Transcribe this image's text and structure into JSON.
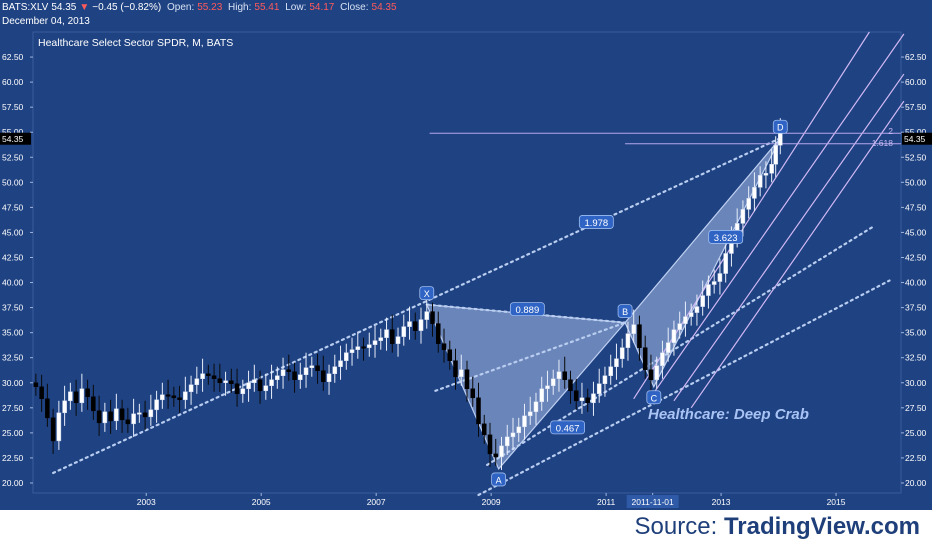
{
  "header": {
    "symbol": "BATS:XLV",
    "last": "54.35",
    "change_arrow": "▼",
    "change": "−0.45 (−0.82%)",
    "open_label": "Open:",
    "open": "55.23",
    "high_label": "High:",
    "high": "55.41",
    "low_label": "Low:",
    "low": "54.17",
    "close_label": "Close:",
    "close": "54.35",
    "date": "December 04, 2013"
  },
  "footer": {
    "source_prefix": "Source: ",
    "source_brand": "TradingView.com"
  },
  "colors": {
    "background": "#1f4282",
    "up_candle": "#ffffff",
    "down_candle": "#000000",
    "pattern_fill": "#a8bee8",
    "pattern_line": "#bfd0f2",
    "dotted_line": "#b8cdf0",
    "pitchfork": "#d0b8f4",
    "axis_text": "#ffffff"
  },
  "chart_data": {
    "type": "candlestick",
    "title": "Healthcare Select Sector SPDR, M, BATS",
    "annotation": "Healthcare: Deep Crab",
    "x_ticks": [
      "2003",
      "2005",
      "2007",
      "2009",
      "2011",
      "2011-11-01",
      "2013",
      "2015"
    ],
    "highlighted_x_tick": "2011-11-01",
    "y_ticks": [
      "20.00",
      "22.50",
      "25.00",
      "27.50",
      "30.00",
      "32.50",
      "35.00",
      "37.50",
      "40.00",
      "42.50",
      "45.00",
      "47.50",
      "50.00",
      "52.50",
      "55.00",
      "57.50",
      "60.00",
      "62.50"
    ],
    "ylim": [
      19.0,
      65.0
    ],
    "xlim": [
      2001.05,
      2016.15
    ],
    "last_price_label": "54.35",
    "last_price": 54.35,
    "closes": [
      {
        "year": 2001.1,
        "close": 29.6
      },
      {
        "year": 2001.2,
        "close": 28.4
      },
      {
        "year": 2001.3,
        "close": 26.5
      },
      {
        "year": 2001.4,
        "close": 24.2
      },
      {
        "year": 2001.5,
        "close": 27.0
      },
      {
        "year": 2001.6,
        "close": 28.2
      },
      {
        "year": 2001.7,
        "close": 29.1
      },
      {
        "year": 2001.8,
        "close": 28.0
      },
      {
        "year": 2001.9,
        "close": 29.4
      },
      {
        "year": 2002.0,
        "close": 28.6
      },
      {
        "year": 2002.1,
        "close": 27.2
      },
      {
        "year": 2002.2,
        "close": 26.0
      },
      {
        "year": 2002.3,
        "close": 27.1
      },
      {
        "year": 2002.4,
        "close": 26.2
      },
      {
        "year": 2002.5,
        "close": 27.4
      },
      {
        "year": 2002.6,
        "close": 26.3
      },
      {
        "year": 2002.7,
        "close": 25.9
      },
      {
        "year": 2002.8,
        "close": 26.9
      },
      {
        "year": 2002.9,
        "close": 27.0
      },
      {
        "year": 2003.0,
        "close": 26.6
      },
      {
        "year": 2003.1,
        "close": 27.3
      },
      {
        "year": 2003.2,
        "close": 28.3
      },
      {
        "year": 2003.3,
        "close": 28.8
      },
      {
        "year": 2003.4,
        "close": 28.7
      },
      {
        "year": 2003.5,
        "close": 28.5
      },
      {
        "year": 2003.6,
        "close": 28.3
      },
      {
        "year": 2003.7,
        "close": 29.1
      },
      {
        "year": 2003.8,
        "close": 29.8
      },
      {
        "year": 2003.9,
        "close": 30.4
      },
      {
        "year": 2004.0,
        "close": 30.9
      },
      {
        "year": 2004.1,
        "close": 30.7
      },
      {
        "year": 2004.2,
        "close": 30.4
      },
      {
        "year": 2004.3,
        "close": 30.0
      },
      {
        "year": 2004.4,
        "close": 30.2
      },
      {
        "year": 2004.5,
        "close": 29.9
      },
      {
        "year": 2004.6,
        "close": 28.9
      },
      {
        "year": 2004.7,
        "close": 29.4
      },
      {
        "year": 2004.8,
        "close": 30.0
      },
      {
        "year": 2004.9,
        "close": 30.3
      },
      {
        "year": 2005.0,
        "close": 29.2
      },
      {
        "year": 2005.1,
        "close": 29.7
      },
      {
        "year": 2005.2,
        "close": 30.3
      },
      {
        "year": 2005.3,
        "close": 30.7
      },
      {
        "year": 2005.4,
        "close": 31.3
      },
      {
        "year": 2005.5,
        "close": 31.1
      },
      {
        "year": 2005.6,
        "close": 30.3
      },
      {
        "year": 2005.7,
        "close": 30.8
      },
      {
        "year": 2005.8,
        "close": 31.5
      },
      {
        "year": 2005.9,
        "close": 31.7
      },
      {
        "year": 2006.0,
        "close": 31.2
      },
      {
        "year": 2006.1,
        "close": 30.1
      },
      {
        "year": 2006.2,
        "close": 30.9
      },
      {
        "year": 2006.3,
        "close": 31.6
      },
      {
        "year": 2006.4,
        "close": 32.2
      },
      {
        "year": 2006.5,
        "close": 33.0
      },
      {
        "year": 2006.6,
        "close": 33.3
      },
      {
        "year": 2006.7,
        "close": 33.6
      },
      {
        "year": 2006.8,
        "close": 33.5
      },
      {
        "year": 2006.9,
        "close": 33.8
      },
      {
        "year": 2007.0,
        "close": 34.2
      },
      {
        "year": 2007.1,
        "close": 34.5
      },
      {
        "year": 2007.2,
        "close": 35.3
      },
      {
        "year": 2007.3,
        "close": 33.9
      },
      {
        "year": 2007.4,
        "close": 34.6
      },
      {
        "year": 2007.5,
        "close": 35.6
      },
      {
        "year": 2007.6,
        "close": 36.1
      },
      {
        "year": 2007.7,
        "close": 35.2
      },
      {
        "year": 2007.8,
        "close": 36.3
      },
      {
        "year": 2007.9,
        "close": 37.1
      },
      {
        "year": 2008.0,
        "close": 35.9
      },
      {
        "year": 2008.1,
        "close": 33.9
      },
      {
        "year": 2008.2,
        "close": 33.3
      },
      {
        "year": 2008.3,
        "close": 32.2
      },
      {
        "year": 2008.4,
        "close": 30.6
      },
      {
        "year": 2008.5,
        "close": 31.3
      },
      {
        "year": 2008.6,
        "close": 29.4
      },
      {
        "year": 2008.7,
        "close": 28.5
      },
      {
        "year": 2008.8,
        "close": 25.9
      },
      {
        "year": 2008.9,
        "close": 24.8
      },
      {
        "year": 2009.0,
        "close": 22.9
      },
      {
        "year": 2009.1,
        "close": 22.6
      },
      {
        "year": 2009.2,
        "close": 23.7
      },
      {
        "year": 2009.3,
        "close": 24.6
      },
      {
        "year": 2009.4,
        "close": 25.0
      },
      {
        "year": 2009.5,
        "close": 25.6
      },
      {
        "year": 2009.6,
        "close": 26.7
      },
      {
        "year": 2009.7,
        "close": 27.1
      },
      {
        "year": 2009.8,
        "close": 28.1
      },
      {
        "year": 2009.9,
        "close": 29.4
      },
      {
        "year": 2010.0,
        "close": 29.7
      },
      {
        "year": 2010.1,
        "close": 30.4
      },
      {
        "year": 2010.2,
        "close": 31.1
      },
      {
        "year": 2010.3,
        "close": 30.3
      },
      {
        "year": 2010.4,
        "close": 29.2
      },
      {
        "year": 2010.5,
        "close": 28.2
      },
      {
        "year": 2010.6,
        "close": 28.5
      },
      {
        "year": 2010.7,
        "close": 28.0
      },
      {
        "year": 2010.8,
        "close": 28.9
      },
      {
        "year": 2010.9,
        "close": 29.9
      },
      {
        "year": 2011.0,
        "close": 30.7
      },
      {
        "year": 2011.1,
        "close": 31.6
      },
      {
        "year": 2011.2,
        "close": 32.4
      },
      {
        "year": 2011.3,
        "close": 33.5
      },
      {
        "year": 2011.4,
        "close": 34.9
      },
      {
        "year": 2011.5,
        "close": 35.8
      },
      {
        "year": 2011.6,
        "close": 33.5
      },
      {
        "year": 2011.7,
        "close": 31.3
      },
      {
        "year": 2011.8,
        "close": 30.3
      },
      {
        "year": 2011.9,
        "close": 31.7
      },
      {
        "year": 2012.0,
        "close": 33.0
      },
      {
        "year": 2012.1,
        "close": 34.0
      },
      {
        "year": 2012.2,
        "close": 35.3
      },
      {
        "year": 2012.3,
        "close": 35.9
      },
      {
        "year": 2012.4,
        "close": 36.6
      },
      {
        "year": 2012.5,
        "close": 37.0
      },
      {
        "year": 2012.6,
        "close": 37.6
      },
      {
        "year": 2012.7,
        "close": 38.7
      },
      {
        "year": 2012.8,
        "close": 39.8
      },
      {
        "year": 2012.9,
        "close": 40.1
      },
      {
        "year": 2013.0,
        "close": 40.9
      },
      {
        "year": 2013.1,
        "close": 42.9
      },
      {
        "year": 2013.2,
        "close": 44.4
      },
      {
        "year": 2013.3,
        "close": 45.9
      },
      {
        "year": 2013.4,
        "close": 47.3
      },
      {
        "year": 2013.5,
        "close": 48.4
      },
      {
        "year": 2013.6,
        "close": 49.5
      },
      {
        "year": 2013.7,
        "close": 50.7
      },
      {
        "year": 2013.8,
        "close": 50.9
      },
      {
        "year": 2013.9,
        "close": 51.8
      },
      {
        "year": 2013.97,
        "close": 53.7
      },
      {
        "year": 2014.05,
        "close": 55.2
      }
    ],
    "pattern_points": [
      {
        "label": "X",
        "year": 2007.9,
        "price": 37.8
      },
      {
        "label": "A",
        "year": 2009.15,
        "price": 21.4
      },
      {
        "label": "B",
        "year": 2011.35,
        "price": 36.0
      },
      {
        "label": "C",
        "year": 2011.85,
        "price": 29.6
      },
      {
        "label": "D",
        "year": 2014.05,
        "price": 54.4
      }
    ],
    "ratio_labels": [
      {
        "text": "1.978",
        "year": 2010.85,
        "price": 46.0
      },
      {
        "text": "0.889",
        "year": 2009.65,
        "price": 37.3
      },
      {
        "text": "3.623",
        "year": 2013.1,
        "price": 44.5
      },
      {
        "text": "0.467",
        "year": 2010.35,
        "price": 25.5
      }
    ],
    "fib_labels": [
      {
        "text": "2",
        "price": 55.1
      },
      {
        "text": "1.618",
        "price": 53.9
      }
    ],
    "dotted_lines": [
      {
        "from": [
          2001.4,
          21.0
        ],
        "to": [
          2014.05,
          54.4
        ]
      },
      {
        "from": [
          2008.95,
          21.8
        ],
        "to": [
          2015.7,
          45.7
        ]
      },
      {
        "from": [
          2008.8,
          18.8
        ],
        "to": [
          2015.95,
          40.2
        ]
      },
      {
        "from": [
          2007.9,
          37.8
        ],
        "to": [
          2011.35,
          36.0
        ]
      },
      {
        "from": [
          2008.05,
          29.2
        ],
        "to": [
          2011.35,
          36.0
        ]
      }
    ],
    "pitchfork_lines": [
      {
        "from": [
          2011.5,
          28.4
        ],
        "to": [
          2015.6,
          65.0
        ]
      },
      {
        "from": [
          2011.85,
          29.0
        ],
        "to": [
          2016.2,
          64.8
        ]
      },
      {
        "from": [
          2012.2,
          28.2
        ],
        "to": [
          2016.2,
          60.8
        ]
      },
      {
        "from": [
          2012.5,
          27.5
        ],
        "to": [
          2016.2,
          58.1
        ]
      }
    ],
    "horizontal_lines": [
      {
        "price": 54.9,
        "from": 2007.95,
        "to": 2016.15
      },
      {
        "price": 53.85,
        "from": 2011.35,
        "to": 2016.15
      }
    ]
  }
}
